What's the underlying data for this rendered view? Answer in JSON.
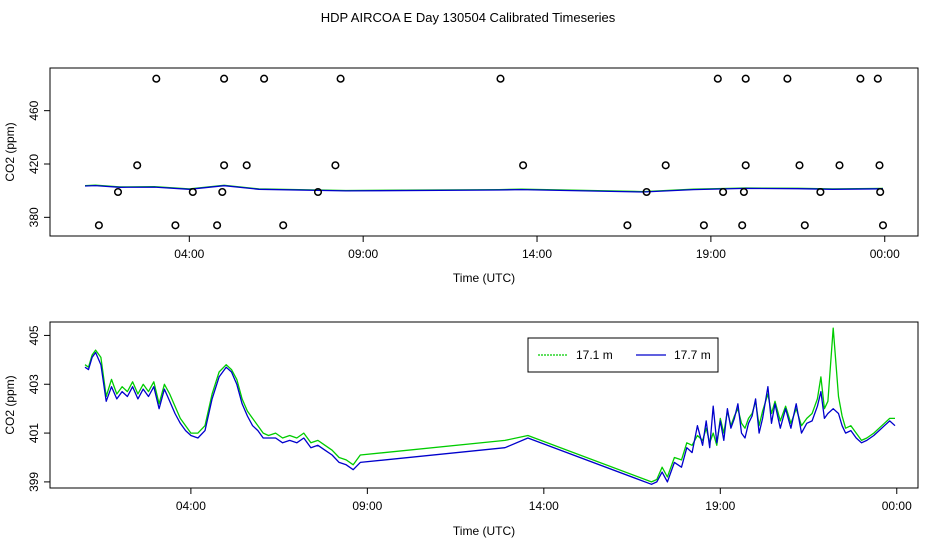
{
  "title": "HDP AIRCOA E  Day 130504  Calibrated Timeseries",
  "colors": {
    "green": "#00cc00",
    "blue": "#0000cc",
    "black": "#000000"
  },
  "chart_data": [
    {
      "type": "line+scatter",
      "xlabel": "Time (UTC)",
      "ylabel": "CO2 (ppm)",
      "xlim": [
        1.0,
        23.95
      ],
      "ylim": [
        366,
        492
      ],
      "xticks": [
        4,
        9,
        14,
        19,
        24
      ],
      "xtick_labels": [
        "04:00",
        "09:00",
        "14:00",
        "19:00",
        "00:00"
      ],
      "yticks": [
        380,
        420,
        460
      ],
      "yticks_labels": [
        "380",
        "420",
        "460"
      ],
      "scatter_points": [
        [
          1.4,
          374
        ],
        [
          1.95,
          399
        ],
        [
          2.5,
          419
        ],
        [
          3.05,
          484
        ],
        [
          3.6,
          374
        ],
        [
          4.1,
          399
        ],
        [
          4.8,
          374
        ],
        [
          4.95,
          399
        ],
        [
          5.0,
          419
        ],
        [
          5.0,
          484
        ],
        [
          5.65,
          419
        ],
        [
          6.15,
          484
        ],
        [
          6.7,
          374
        ],
        [
          7.7,
          399
        ],
        [
          8.2,
          419
        ],
        [
          8.35,
          484
        ],
        [
          12.95,
          484
        ],
        [
          13.6,
          419
        ],
        [
          16.6,
          374
        ],
        [
          17.15,
          399
        ],
        [
          17.7,
          419
        ],
        [
          18.8,
          374
        ],
        [
          19.2,
          484
        ],
        [
          19.35,
          399
        ],
        [
          19.9,
          374
        ],
        [
          19.95,
          399
        ],
        [
          20.0,
          419
        ],
        [
          20.0,
          484
        ],
        [
          21.2,
          484
        ],
        [
          21.55,
          419
        ],
        [
          21.7,
          374
        ],
        [
          22.15,
          399
        ],
        [
          22.7,
          419
        ],
        [
          23.3,
          484
        ],
        [
          23.8,
          484
        ],
        [
          23.85,
          419
        ],
        [
          23.87,
          399
        ],
        [
          23.95,
          374
        ]
      ]
    },
    {
      "type": "line",
      "xlabel": "Time (UTC)",
      "ylabel": "CO2 (ppm)",
      "xlim": [
        1.0,
        23.95
      ],
      "ylim": [
        398.75,
        405.55
      ],
      "xticks": [
        4,
        9,
        14,
        19,
        24
      ],
      "xtick_labels": [
        "04:00",
        "09:00",
        "14:00",
        "19:00",
        "00:00"
      ],
      "yticks": [
        399,
        401,
        403,
        405
      ],
      "ytick_labels": [
        "399",
        "401",
        "403",
        "405"
      ],
      "legend": {
        "position": "top-right",
        "entries": [
          "17.1 m",
          "17.7 m"
        ]
      },
      "series": [
        {
          "name": "17.1 m",
          "color": "#00cc00",
          "points": [
            [
              1.0,
              403.8
            ],
            [
              1.1,
              403.7
            ],
            [
              1.2,
              404.2
            ],
            [
              1.3,
              404.4
            ],
            [
              1.45,
              404.1
            ],
            [
              1.6,
              402.5
            ],
            [
              1.75,
              403.2
            ],
            [
              1.9,
              402.6
            ],
            [
              2.05,
              402.9
            ],
            [
              2.2,
              402.7
            ],
            [
              2.35,
              403.1
            ],
            [
              2.5,
              402.6
            ],
            [
              2.65,
              403.0
            ],
            [
              2.8,
              402.7
            ],
            [
              2.95,
              403.1
            ],
            [
              3.1,
              402.2
            ],
            [
              3.25,
              403.0
            ],
            [
              3.4,
              402.6
            ],
            [
              3.55,
              402.1
            ],
            [
              3.7,
              401.6
            ],
            [
              3.85,
              401.3
            ],
            [
              4.0,
              401.0
            ],
            [
              4.2,
              401.0
            ],
            [
              4.4,
              401.3
            ],
            [
              4.6,
              402.6
            ],
            [
              4.8,
              403.5
            ],
            [
              5.0,
              403.8
            ],
            [
              5.15,
              403.6
            ],
            [
              5.3,
              403.2
            ],
            [
              5.45,
              402.4
            ],
            [
              5.6,
              401.9
            ],
            [
              5.75,
              401.6
            ],
            [
              5.9,
              401.3
            ],
            [
              6.05,
              401.0
            ],
            [
              6.2,
              400.9
            ],
            [
              6.4,
              401.0
            ],
            [
              6.6,
              400.8
            ],
            [
              6.8,
              400.9
            ],
            [
              7.0,
              400.8
            ],
            [
              7.2,
              401.0
            ],
            [
              7.4,
              400.6
            ],
            [
              7.6,
              400.7
            ],
            [
              7.8,
              400.5
            ],
            [
              8.0,
              400.3
            ],
            [
              8.2,
              400.0
            ],
            [
              8.4,
              399.9
            ],
            [
              8.6,
              399.7
            ],
            [
              8.8,
              400.1
            ],
            [
              12.9,
              400.7
            ],
            [
              13.55,
              400.9
            ],
            [
              17.05,
              399.0
            ],
            [
              17.2,
              399.1
            ],
            [
              17.35,
              399.6
            ],
            [
              17.5,
              399.2
            ],
            [
              17.7,
              400.0
            ],
            [
              17.9,
              399.9
            ],
            [
              18.05,
              400.6
            ],
            [
              18.2,
              400.5
            ],
            [
              18.35,
              400.9
            ],
            [
              18.5,
              400.7
            ],
            [
              18.6,
              401.2
            ],
            [
              18.7,
              400.6
            ],
            [
              18.8,
              401.0
            ],
            [
              18.9,
              400.5
            ],
            [
              19.0,
              401.6
            ],
            [
              19.1,
              401.0
            ],
            [
              19.2,
              401.9
            ],
            [
              19.3,
              401.3
            ],
            [
              19.4,
              401.7
            ],
            [
              19.5,
              402.0
            ],
            [
              19.6,
              401.4
            ],
            [
              19.7,
              401.2
            ],
            [
              19.8,
              401.6
            ],
            [
              19.9,
              401.8
            ],
            [
              20.0,
              402.3
            ],
            [
              20.1,
              401.3
            ],
            [
              20.2,
              401.9
            ],
            [
              20.35,
              402.6
            ],
            [
              20.45,
              401.8
            ],
            [
              20.55,
              402.3
            ],
            [
              20.7,
              401.5
            ],
            [
              20.85,
              402.1
            ],
            [
              21.0,
              401.4
            ],
            [
              21.15,
              402.0
            ],
            [
              21.3,
              401.3
            ],
            [
              21.45,
              401.6
            ],
            [
              21.6,
              401.8
            ],
            [
              21.75,
              402.4
            ],
            [
              21.85,
              403.3
            ],
            [
              21.95,
              402.0
            ],
            [
              22.05,
              402.3
            ],
            [
              22.2,
              405.3
            ],
            [
              22.35,
              402.5
            ],
            [
              22.45,
              401.7
            ],
            [
              22.55,
              401.2
            ],
            [
              22.7,
              401.3
            ],
            [
              22.85,
              401.0
            ],
            [
              23.0,
              400.7
            ],
            [
              23.15,
              400.8
            ],
            [
              23.35,
              401.0
            ],
            [
              23.5,
              401.2
            ],
            [
              23.65,
              401.4
            ],
            [
              23.8,
              401.6
            ],
            [
              23.95,
              401.6
            ]
          ]
        },
        {
          "name": "17.7 m",
          "color": "#0000cc",
          "points": [
            [
              1.0,
              403.7
            ],
            [
              1.1,
              403.6
            ],
            [
              1.2,
              404.1
            ],
            [
              1.3,
              404.3
            ],
            [
              1.45,
              403.8
            ],
            [
              1.6,
              402.3
            ],
            [
              1.75,
              402.9
            ],
            [
              1.9,
              402.4
            ],
            [
              2.05,
              402.7
            ],
            [
              2.2,
              402.5
            ],
            [
              2.35,
              402.9
            ],
            [
              2.5,
              402.4
            ],
            [
              2.65,
              402.8
            ],
            [
              2.8,
              402.5
            ],
            [
              2.95,
              402.9
            ],
            [
              3.1,
              402.0
            ],
            [
              3.25,
              402.8
            ],
            [
              3.4,
              402.3
            ],
            [
              3.55,
              401.8
            ],
            [
              3.7,
              401.4
            ],
            [
              3.85,
              401.1
            ],
            [
              4.0,
              400.9
            ],
            [
              4.2,
              400.8
            ],
            [
              4.4,
              401.1
            ],
            [
              4.6,
              402.4
            ],
            [
              4.8,
              403.3
            ],
            [
              5.0,
              403.7
            ],
            [
              5.15,
              403.5
            ],
            [
              5.3,
              403.0
            ],
            [
              5.45,
              402.2
            ],
            [
              5.6,
              401.7
            ],
            [
              5.75,
              401.3
            ],
            [
              5.9,
              401.1
            ],
            [
              6.05,
              400.8
            ],
            [
              6.2,
              400.8
            ],
            [
              6.4,
              400.8
            ],
            [
              6.6,
              400.6
            ],
            [
              6.8,
              400.7
            ],
            [
              7.0,
              400.6
            ],
            [
              7.2,
              400.8
            ],
            [
              7.4,
              400.4
            ],
            [
              7.6,
              400.5
            ],
            [
              7.8,
              400.3
            ],
            [
              8.0,
              400.1
            ],
            [
              8.2,
              399.8
            ],
            [
              8.4,
              399.7
            ],
            [
              8.6,
              399.5
            ],
            [
              8.8,
              399.8
            ],
            [
              12.9,
              400.4
            ],
            [
              13.55,
              400.8
            ],
            [
              17.05,
              398.9
            ],
            [
              17.2,
              399.0
            ],
            [
              17.35,
              399.4
            ],
            [
              17.5,
              399.0
            ],
            [
              17.7,
              399.8
            ],
            [
              17.9,
              399.6
            ],
            [
              18.05,
              400.4
            ],
            [
              18.2,
              400.2
            ],
            [
              18.35,
              401.3
            ],
            [
              18.5,
              400.5
            ],
            [
              18.6,
              401.5
            ],
            [
              18.7,
              400.4
            ],
            [
              18.8,
              402.1
            ],
            [
              18.9,
              400.6
            ],
            [
              19.0,
              401.5
            ],
            [
              19.1,
              400.7
            ],
            [
              19.2,
              402.0
            ],
            [
              19.3,
              401.2
            ],
            [
              19.4,
              401.6
            ],
            [
              19.5,
              402.2
            ],
            [
              19.6,
              401.0
            ],
            [
              19.7,
              400.8
            ],
            [
              19.8,
              401.4
            ],
            [
              19.9,
              401.7
            ],
            [
              20.0,
              402.4
            ],
            [
              20.1,
              401.0
            ],
            [
              20.2,
              401.6
            ],
            [
              20.35,
              402.9
            ],
            [
              20.45,
              401.4
            ],
            [
              20.55,
              402.2
            ],
            [
              20.7,
              401.2
            ],
            [
              20.85,
              402.0
            ],
            [
              21.0,
              401.2
            ],
            [
              21.15,
              402.2
            ],
            [
              21.3,
              401.0
            ],
            [
              21.45,
              401.4
            ],
            [
              21.6,
              401.5
            ],
            [
              21.75,
              402.1
            ],
            [
              21.85,
              402.7
            ],
            [
              21.95,
              401.6
            ],
            [
              22.05,
              401.8
            ],
            [
              22.2,
              402.0
            ],
            [
              22.35,
              401.8
            ],
            [
              22.45,
              401.3
            ],
            [
              22.55,
              401.0
            ],
            [
              22.7,
              401.1
            ],
            [
              22.85,
              400.8
            ],
            [
              23.0,
              400.6
            ],
            [
              23.15,
              400.7
            ],
            [
              23.35,
              400.9
            ],
            [
              23.5,
              401.1
            ],
            [
              23.65,
              401.3
            ],
            [
              23.8,
              401.5
            ],
            [
              23.95,
              401.3
            ]
          ]
        }
      ]
    }
  ]
}
